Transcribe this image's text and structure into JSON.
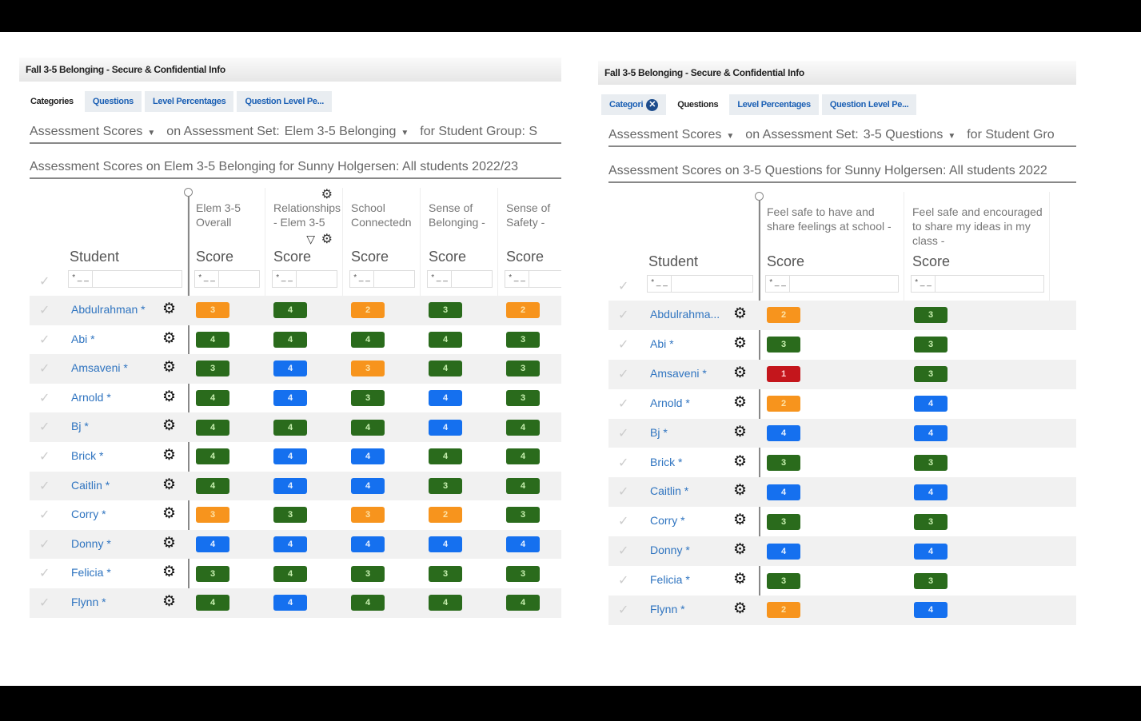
{
  "colors": {
    "orange": "#f7941d",
    "green": "#2a6b1c",
    "blue": "#1570ef",
    "red": "#c4161c"
  },
  "left": {
    "title": "Fall 3-5 Belonging - Secure & Confidential Info",
    "tabs": [
      {
        "label": "Categories",
        "active": true
      },
      {
        "label": "Questions"
      },
      {
        "label": "Level Percentages"
      },
      {
        "label": "Question Level Pe..."
      }
    ],
    "filter": {
      "measure": "Assessment Scores",
      "on_label": "on Assessment Set:",
      "set": "Elem 3-5 Belonging",
      "group_label": "for Student Group:  S"
    },
    "subtitle": "Assessment Scores on Elem 3-5 Belonging for Sunny Holgersen: All students 2022/23",
    "student_header": "Student",
    "columns": [
      {
        "title": "Elem 3-5 Overall",
        "sub": "Score"
      },
      {
        "title": "Relationships - Elem 3-5",
        "sub": "Score"
      },
      {
        "title": "School Connectedn",
        "sub": "Score"
      },
      {
        "title": "Sense of Belonging -",
        "sub": "Score"
      },
      {
        "title": "Sense of Safety -",
        "sub": "Score"
      }
    ],
    "rows": [
      {
        "name": "Abdulrahman *",
        "scores": [
          [
            "3",
            "orange"
          ],
          [
            "4",
            "green"
          ],
          [
            "2",
            "orange"
          ],
          [
            "3",
            "green"
          ],
          [
            "2",
            "orange"
          ]
        ]
      },
      {
        "name": "Abi *",
        "scores": [
          [
            "4",
            "green"
          ],
          [
            "4",
            "green"
          ],
          [
            "4",
            "green"
          ],
          [
            "4",
            "green"
          ],
          [
            "3",
            "green"
          ]
        ]
      },
      {
        "name": "Amsaveni *",
        "scores": [
          [
            "3",
            "green"
          ],
          [
            "4",
            "blue"
          ],
          [
            "3",
            "orange"
          ],
          [
            "4",
            "green"
          ],
          [
            "3",
            "green"
          ]
        ]
      },
      {
        "name": "Arnold *",
        "scores": [
          [
            "4",
            "green"
          ],
          [
            "4",
            "blue"
          ],
          [
            "3",
            "green"
          ],
          [
            "4",
            "blue"
          ],
          [
            "3",
            "green"
          ]
        ]
      },
      {
        "name": "Bj *",
        "scores": [
          [
            "4",
            "green"
          ],
          [
            "4",
            "green"
          ],
          [
            "4",
            "green"
          ],
          [
            "4",
            "blue"
          ],
          [
            "4",
            "green"
          ]
        ]
      },
      {
        "name": "Brick *",
        "scores": [
          [
            "4",
            "green"
          ],
          [
            "4",
            "blue"
          ],
          [
            "4",
            "blue"
          ],
          [
            "4",
            "green"
          ],
          [
            "4",
            "green"
          ]
        ]
      },
      {
        "name": "Caitlin *",
        "scores": [
          [
            "4",
            "green"
          ],
          [
            "4",
            "blue"
          ],
          [
            "4",
            "blue"
          ],
          [
            "3",
            "green"
          ],
          [
            "4",
            "green"
          ]
        ]
      },
      {
        "name": "Corry *",
        "scores": [
          [
            "3",
            "orange"
          ],
          [
            "3",
            "green"
          ],
          [
            "3",
            "orange"
          ],
          [
            "2",
            "orange"
          ],
          [
            "3",
            "green"
          ]
        ]
      },
      {
        "name": "Donny *",
        "scores": [
          [
            "4",
            "blue"
          ],
          [
            "4",
            "blue"
          ],
          [
            "4",
            "blue"
          ],
          [
            "4",
            "blue"
          ],
          [
            "4",
            "blue"
          ]
        ]
      },
      {
        "name": "Felicia *",
        "scores": [
          [
            "3",
            "green"
          ],
          [
            "4",
            "green"
          ],
          [
            "3",
            "green"
          ],
          [
            "3",
            "green"
          ],
          [
            "3",
            "green"
          ]
        ]
      },
      {
        "name": "Flynn *",
        "scores": [
          [
            "4",
            "green"
          ],
          [
            "4",
            "blue"
          ],
          [
            "4",
            "green"
          ],
          [
            "4",
            "green"
          ],
          [
            "4",
            "green"
          ]
        ]
      }
    ]
  },
  "right": {
    "title": "Fall 3-5 Belonging - Secure & Confidential Info",
    "tabs": [
      {
        "label": "Categori",
        "close": true
      },
      {
        "label": "Questions",
        "active": true
      },
      {
        "label": "Level Percentages"
      },
      {
        "label": "Question Level Pe..."
      }
    ],
    "filter": {
      "measure": "Assessment Scores",
      "on_label": "on Assessment Set:",
      "set": "3-5 Questions",
      "group_label": "for Student Gro"
    },
    "subtitle": "Assessment Scores on 3-5 Questions for Sunny Holgersen: All students 2022",
    "student_header": "Student",
    "columns": [
      {
        "title": "Feel safe to have and share feelings at school -",
        "sub": "Score"
      },
      {
        "title": "Feel safe and encouraged to share my ideas in my class -",
        "sub": "Score"
      }
    ],
    "rows": [
      {
        "name": "Abdulrahma...",
        "scores": [
          [
            "2",
            "orange"
          ],
          [
            "3",
            "green"
          ]
        ]
      },
      {
        "name": "Abi *",
        "scores": [
          [
            "3",
            "green"
          ],
          [
            "3",
            "green"
          ]
        ]
      },
      {
        "name": "Amsaveni *",
        "scores": [
          [
            "1",
            "red"
          ],
          [
            "3",
            "green"
          ]
        ]
      },
      {
        "name": "Arnold *",
        "scores": [
          [
            "2",
            "orange"
          ],
          [
            "4",
            "blue"
          ]
        ]
      },
      {
        "name": "Bj *",
        "scores": [
          [
            "4",
            "blue"
          ],
          [
            "4",
            "blue"
          ]
        ]
      },
      {
        "name": "Brick *",
        "scores": [
          [
            "3",
            "green"
          ],
          [
            "3",
            "green"
          ]
        ]
      },
      {
        "name": "Caitlin *",
        "scores": [
          [
            "4",
            "blue"
          ],
          [
            "4",
            "blue"
          ]
        ]
      },
      {
        "name": "Corry *",
        "scores": [
          [
            "3",
            "green"
          ],
          [
            "3",
            "green"
          ]
        ]
      },
      {
        "name": "Donny *",
        "scores": [
          [
            "4",
            "blue"
          ],
          [
            "4",
            "blue"
          ]
        ]
      },
      {
        "name": "Felicia *",
        "scores": [
          [
            "3",
            "green"
          ],
          [
            "3",
            "green"
          ]
        ]
      },
      {
        "name": "Flynn *",
        "scores": [
          [
            "2",
            "orange"
          ],
          [
            "4",
            "blue"
          ]
        ]
      }
    ]
  }
}
